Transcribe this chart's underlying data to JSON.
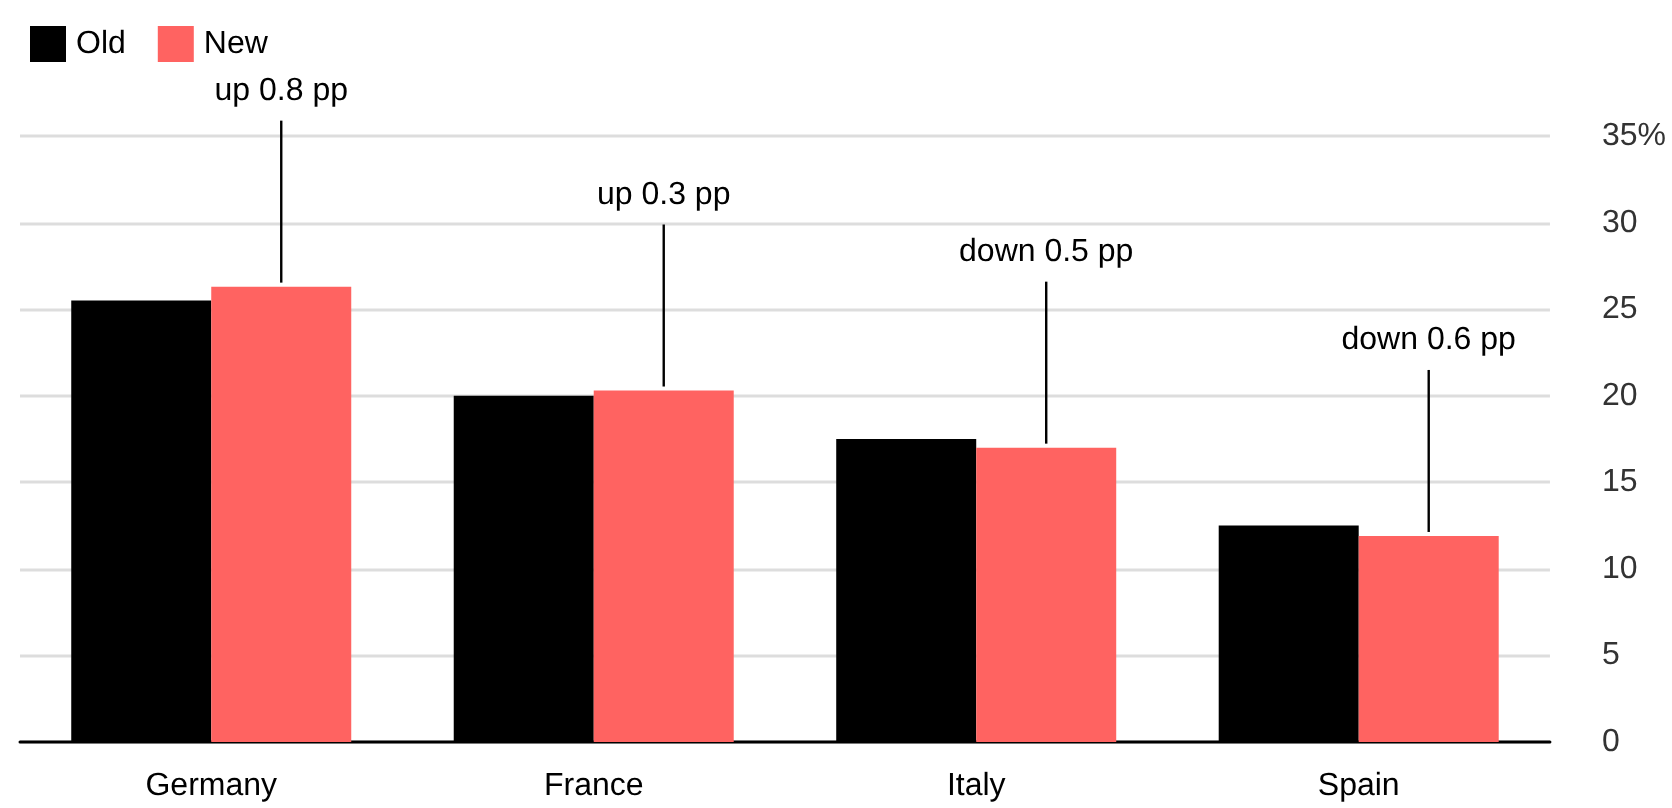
{
  "chart_data": {
    "type": "bar",
    "categories": [
      "Germany",
      "France",
      "Italy",
      "Spain"
    ],
    "series": [
      {
        "name": "Old",
        "color": "#000000",
        "values": [
          25.5,
          20.0,
          17.5,
          12.5
        ]
      },
      {
        "name": "New",
        "color": "#ff6361",
        "values": [
          26.3,
          20.3,
          17.0,
          11.9
        ]
      }
    ],
    "ylim": [
      0,
      35
    ],
    "yticks": [
      0,
      5,
      10,
      15,
      20,
      25,
      30,
      {
        "value": 35,
        "label": "35%"
      }
    ],
    "grid": "y",
    "legend": "top left",
    "annotations": [
      {
        "text": "up 0.8 pp",
        "y": 26.3
      },
      {
        "text": "up 0.3 pp",
        "y": 20.3
      },
      {
        "text": "down 0.5 pp",
        "y": 17.0
      },
      {
        "text": "down 0.6 pp",
        "y": 11.9
      }
    ]
  }
}
